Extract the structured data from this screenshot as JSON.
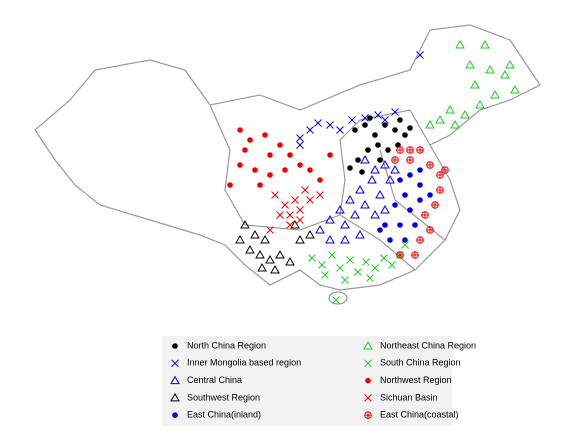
{
  "legend": {
    "items": [
      {
        "label": "North China Region",
        "color": "#000000",
        "marker": "dot"
      },
      {
        "label": "Inner Mongolia based region",
        "color": "#0000dd",
        "marker": "x"
      },
      {
        "label": "Central China",
        "color": "#0000dd",
        "marker": "triangle"
      },
      {
        "label": "Southwest Region",
        "color": "#000000",
        "marker": "triangle"
      },
      {
        "label": "East China(inland)",
        "color": "#0000dd",
        "marker": "dot"
      },
      {
        "label": "Northeast China Region",
        "color": "#22cc22",
        "marker": "triangle"
      },
      {
        "label": "South China Region",
        "color": "#22cc22",
        "marker": "x"
      },
      {
        "label": "Northwest Region",
        "color": "#ee0000",
        "marker": "dot"
      },
      {
        "label": "Sichuan Basin",
        "color": "#ee0000",
        "marker": "x"
      },
      {
        "label": "East China(coastal)",
        "color": "#ee0000",
        "marker": "circle-plus"
      }
    ]
  }
}
